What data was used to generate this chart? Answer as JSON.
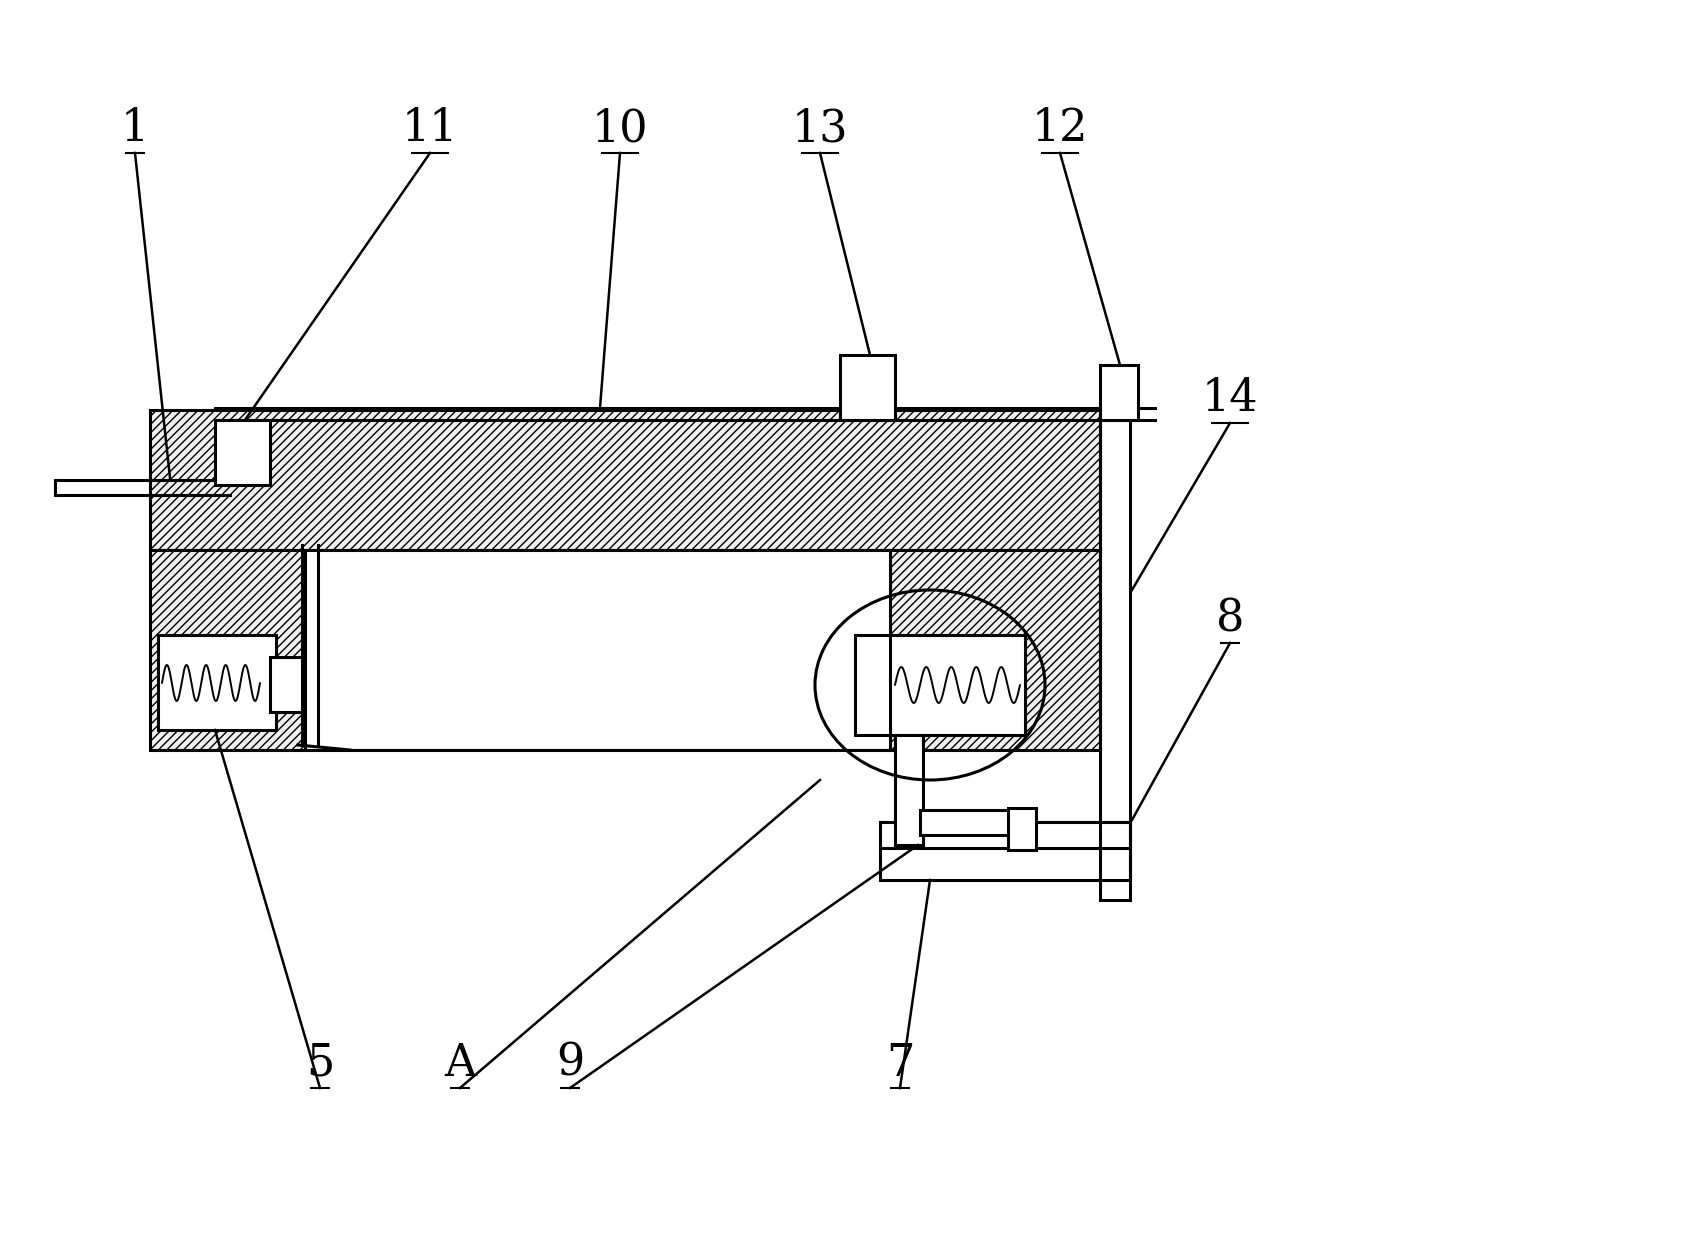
{
  "bg_color": "#ffffff",
  "lc": "#000000",
  "lw": 2.2,
  "lw_thin": 1.4,
  "lw_leader": 1.8,
  "fs_label": 32,
  "fig_w": 16.94,
  "fig_h": 12.4,
  "xlim": [
    0,
    1694
  ],
  "ylim": [
    0,
    1240
  ]
}
